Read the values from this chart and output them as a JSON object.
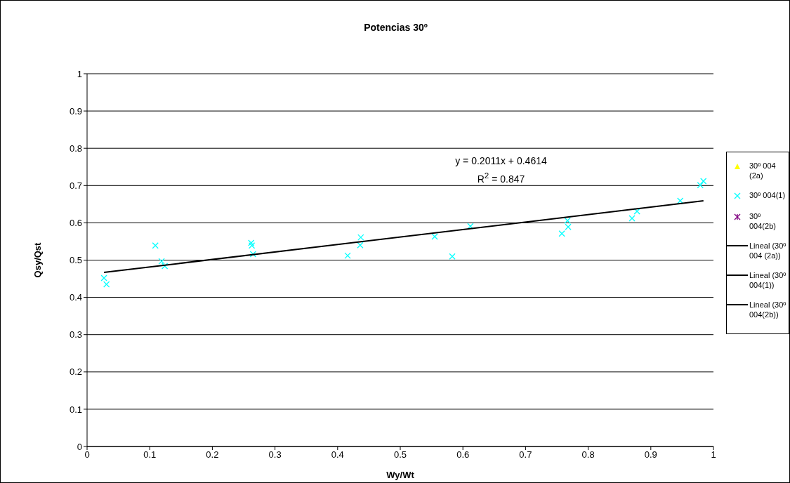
{
  "chart_data": {
    "type": "scatter",
    "title": "Potencias 30º",
    "xlabel": "Wy/Wt",
    "ylabel": "Qsy/Qst",
    "xlim": [
      0,
      1
    ],
    "xticks": [
      0,
      0.1,
      0.2,
      0.3,
      0.4,
      0.5,
      0.6,
      0.7,
      0.8,
      0.9,
      1
    ],
    "ylim": [
      0,
      1
    ],
    "yticks": [
      0,
      0.1,
      0.2,
      0.3,
      0.4,
      0.5,
      0.6,
      0.7,
      0.8,
      0.9,
      1
    ],
    "grid": "y",
    "legend": "right",
    "annotations": [
      "y = 0.2011x + 0.4614",
      "R$^{2}$ = 0.847"
    ],
    "series": [
      {
        "name": "30º 004 (2a)",
        "marker": "triangle",
        "color": "#ffff00"
      },
      {
        "name": "30º 004(1)",
        "marker": "cross",
        "color": "#00ffff",
        "x": [
          0.027,
          0.031,
          0.109,
          0.119,
          0.124,
          0.262,
          0.263,
          0.265,
          0.416,
          0.437,
          0.436,
          0.555,
          0.583,
          0.612,
          0.758,
          0.767,
          0.768,
          0.87,
          0.878,
          0.947,
          0.979,
          0.984
        ],
        "values": [
          0.452,
          0.435,
          0.539,
          0.497,
          0.484,
          0.546,
          0.539,
          0.516,
          0.512,
          0.561,
          0.54,
          0.563,
          0.51,
          0.591,
          0.571,
          0.606,
          0.589,
          0.612,
          0.631,
          0.659,
          0.701,
          0.712
        ]
      },
      {
        "name": "30º 004(2b)",
        "marker": "star",
        "color": "#800080"
      },
      {
        "name": "Lineal (30º 004 (2a))",
        "type": "line",
        "color": "#000000",
        "line_style": "solid"
      },
      {
        "name": "Lineal (30º 004(1))",
        "type": "line",
        "color": "#000000",
        "line_style": "solid",
        "x": [
          0.027,
          0.984
        ],
        "values": [
          0.467,
          0.659
        ]
      },
      {
        "name": "Lineal (30º 004(2b))",
        "type": "line",
        "color": "#000000",
        "line_style": "solid"
      }
    ]
  }
}
